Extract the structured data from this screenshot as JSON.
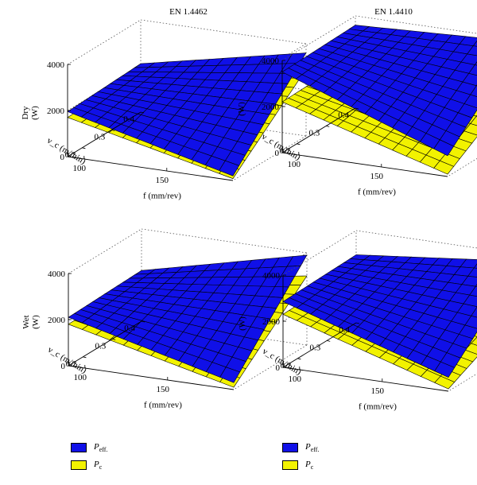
{
  "colors": {
    "p_eff": "#1010e8",
    "p_c": "#f2f200",
    "edge": "#000000",
    "box": "#555555"
  },
  "legend": {
    "p_eff": {
      "main": "P",
      "sub": "eff."
    },
    "p_c": {
      "main": "P",
      "sub": "c"
    }
  },
  "chart_data": [
    {
      "type": "surface",
      "title": "EN 1.4462",
      "ylabel": "Dry\n(W)",
      "z_ticks": [
        "0",
        "2000",
        "4000"
      ],
      "z_range": [
        0,
        4000
      ],
      "vc_label": "v_c (m/min)",
      "vc_ticks": [
        "0.2",
        "0.3",
        "0.4"
      ],
      "f_label": "f (mm/rev)",
      "f_ticks": [
        "100",
        "150"
      ],
      "f_range": [
        90,
        190
      ],
      "vc_range": [
        0.15,
        0.4
      ],
      "series": [
        {
          "name": "P_eff.",
          "z_front": 200,
          "z_back": 3600,
          "z_low_vc": 1950,
          "z_high_vc": 2100
        },
        {
          "name": "P_c",
          "z_front": 80,
          "z_back": 2900,
          "z_low_vc": 1700,
          "z_high_vc": 1800
        }
      ]
    },
    {
      "type": "surface",
      "title": "EN 1.4410",
      "ylabel": "(W)",
      "z_ticks": [
        "0",
        "2000",
        "4000"
      ],
      "z_range": [
        0,
        4000
      ],
      "vc_label": "v_c (m/min)",
      "vc_ticks": [
        "0.2",
        "0.3",
        "0.4"
      ],
      "f_label": "f (mm/rev)",
      "f_ticks": [
        "100",
        "150"
      ],
      "f_range": [
        90,
        190
      ],
      "vc_range": [
        0.15,
        0.4
      ],
      "series": [
        {
          "name": "P_eff.",
          "z_front": 900,
          "z_back": 3900,
          "z_low_vc": 3500,
          "z_high_vc": 3600
        },
        {
          "name": "P_c",
          "z_front": 100,
          "z_back": 2200,
          "z_low_vc": 2200,
          "z_high_vc": 2300
        }
      ]
    },
    {
      "type": "surface",
      "title": "",
      "ylabel": "Wet\n(W)",
      "z_ticks": [
        "0",
        "2000",
        "4000"
      ],
      "z_range": [
        0,
        4000
      ],
      "vc_label": "v_c (m/min)",
      "vc_ticks": [
        "0.2",
        "0.3",
        "0.4"
      ],
      "f_label": "f (mm/rev)",
      "f_ticks": [
        "100",
        "150"
      ],
      "f_range": [
        90,
        190
      ],
      "vc_range": [
        0.15,
        0.4
      ],
      "series": [
        {
          "name": "P_eff.",
          "z_front": 300,
          "z_back": 3900,
          "z_low_vc": 2100,
          "z_high_vc": 2200
        },
        {
          "name": "P_c",
          "z_front": 100,
          "z_back": 3000,
          "z_low_vc": 1800,
          "z_high_vc": 1850
        }
      ]
    },
    {
      "type": "surface",
      "title": "",
      "ylabel": "(W)",
      "z_ticks": [
        "0",
        "2000",
        "4000"
      ],
      "z_range": [
        0,
        4000
      ],
      "vc_label": "v_c (m/min)",
      "vc_ticks": [
        "0.2",
        "0.3",
        "0.4"
      ],
      "f_label": "f (mm/rev)",
      "f_ticks": [
        "100",
        "150"
      ],
      "f_range": [
        90,
        190
      ],
      "vc_range": [
        0.15,
        0.4
      ],
      "series": [
        {
          "name": "P_eff.",
          "z_front": 600,
          "z_back": 3700,
          "z_low_vc": 2850,
          "z_high_vc": 2950
        },
        {
          "name": "P_c",
          "z_front": 100,
          "z_back": 1700,
          "z_low_vc": 2300,
          "z_high_vc": 2400
        }
      ]
    }
  ]
}
